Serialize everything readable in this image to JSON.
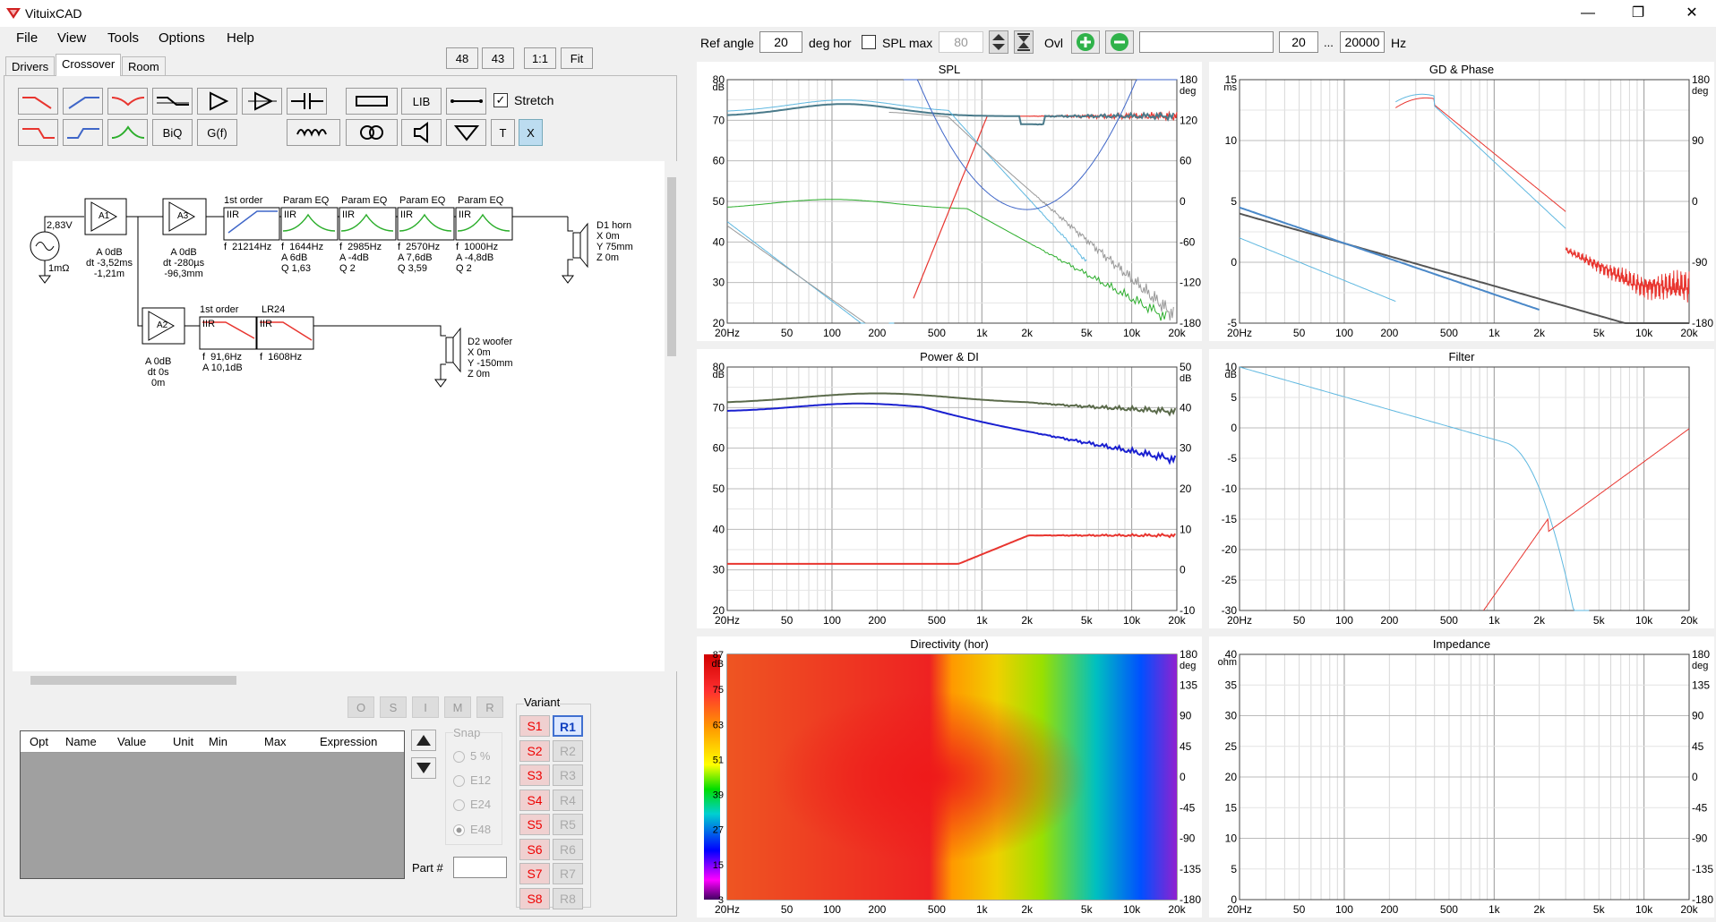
{
  "window": {
    "title": "VituixCAD",
    "minimize": "—",
    "maximize": "❐",
    "close": "✕"
  },
  "menu": [
    "File",
    "View",
    "Tools",
    "Options",
    "Help"
  ],
  "tabs": [
    "Drivers",
    "Crossover",
    "Room"
  ],
  "view_buttons": [
    "48",
    "43",
    "1:1",
    "Fit"
  ],
  "toolbar": {
    "lib": "LIB",
    "biq": "BiQ",
    "gf": "G(f)",
    "t": "T",
    "x": "X",
    "stretch": "Stretch"
  },
  "schematic": {
    "source_v": "2,83V",
    "source_r": "1mΩ",
    "a1_name": "A1",
    "a1_params": "A 0dB\ndt -3,52ms\n-1,21m",
    "a3_name": "A3",
    "a3_params": "A 0dB\ndt -280µs\n-96,3mm",
    "a2_name": "A2",
    "a2_params": "A 0dB\ndt 0s\n0m",
    "b1_title": "1st order",
    "b1_type": "IIR",
    "b1_params": "f  21214Hz",
    "b2_title": "Param EQ",
    "b2_type": "IIR",
    "b2_params": "f  1644Hz\nA 6dB\nQ 1,63",
    "b3_title": "Param EQ",
    "b3_type": "IIR",
    "b3_params": "f  2985Hz\nA -4dB\nQ 2",
    "b4_title": "Param EQ",
    "b4_type": "IIR",
    "b4_params": "f  2570Hz\nA 7,6dB\nQ 3,59",
    "b5_title": "Param EQ",
    "b5_type": "IIR",
    "b5_params": "f  1000Hz\nA -4,8dB\nQ 2",
    "b6_title": "1st order",
    "b6_type": "IIR",
    "b6_params": "f  91,6Hz\nA 10,1dB",
    "b7_title": "LR24",
    "b7_type": "IIR",
    "b7_params": "f  1608Hz",
    "d1": "D1 horn\nX 0m\nY 75mm\nZ 0m",
    "d2": "D2 woofer\nX 0m\nY -150mm\nZ 0m"
  },
  "opt_buttons": [
    "O",
    "S",
    "I",
    "M",
    "R"
  ],
  "opt_table": {
    "headers": [
      "Opt",
      "Name",
      "Value",
      "Unit",
      "Min",
      "Max",
      "Expression"
    ]
  },
  "snap": {
    "title": "Snap",
    "options": [
      "5 %",
      "E12",
      "E24",
      "E48"
    ],
    "selected": "E48"
  },
  "part_label": "Part #",
  "variant": {
    "title": "Variant",
    "s": [
      "S1",
      "S2",
      "S3",
      "S4",
      "S5",
      "S6",
      "S7",
      "S8"
    ],
    "r": [
      "R1",
      "R2",
      "R3",
      "R4",
      "R5",
      "R6",
      "R7",
      "R8"
    ],
    "selected": "R1"
  },
  "topbar": {
    "ref_angle_label": "Ref angle",
    "ref_angle": "20",
    "deg_hor": "deg hor",
    "spl_max_label": "SPL max",
    "spl_max": "80",
    "ovl": "Ovl",
    "ovl_text": "",
    "f_lo": "20",
    "dots": "...",
    "f_hi": "20000",
    "hz": "Hz"
  },
  "plots": {
    "spl": {
      "title": "SPL",
      "yunit": "dB",
      "y2unit": "deg",
      "yticks": [
        "80",
        "70",
        "60",
        "50",
        "40",
        "30",
        "20"
      ],
      "y2ticks": [
        "180",
        "120",
        "60",
        "0",
        "-60",
        "-120",
        "-180"
      ]
    },
    "gd": {
      "title": "GD & Phase",
      "yunit": "ms",
      "y2unit": "deg",
      "yticks": [
        "15",
        "10",
        "5",
        "0",
        "-5"
      ],
      "y2ticks": [
        "180",
        "90",
        "0",
        "-90",
        "-180"
      ]
    },
    "power": {
      "title": "Power & DI",
      "yunit": "dB",
      "y2unit": "dB",
      "yticks": [
        "80",
        "70",
        "60",
        "50",
        "40",
        "30",
        "20"
      ],
      "y2ticks": [
        "50",
        "40",
        "30",
        "20",
        "10",
        "0",
        "-10"
      ]
    },
    "filter": {
      "title": "Filter",
      "yunit": "dB",
      "yticks": [
        "10",
        "5",
        "0",
        "-5",
        "-10",
        "-15",
        "-20",
        "-25",
        "-30"
      ]
    },
    "dir": {
      "title": "Directivity (hor)",
      "yunit": "dB",
      "y2unit": "deg",
      "cbticks": [
        "87",
        "75",
        "63",
        "51",
        "39",
        "27",
        "15",
        "3"
      ],
      "y2ticks": [
        "180",
        "135",
        "90",
        "45",
        "0",
        "-45",
        "-90",
        "-135",
        "-180"
      ]
    },
    "imp": {
      "title": "Impedance",
      "yunit": "ohm",
      "y2unit": "deg",
      "yticks": [
        "40",
        "35",
        "30",
        "25",
        "20",
        "15",
        "10",
        "5",
        "0"
      ],
      "y2ticks": [
        "180",
        "135",
        "90",
        "45",
        "0",
        "-45",
        "-90",
        "-135",
        "-180"
      ]
    },
    "xticks": [
      "20Hz",
      "50",
      "100",
      "200",
      "500",
      "1k",
      "2k",
      "5k",
      "10k",
      "20k"
    ]
  },
  "colors": {
    "accent": "#1e5fd0",
    "red": "#e8352f",
    "blue": "#3f66c8",
    "green": "#2cae2c"
  }
}
